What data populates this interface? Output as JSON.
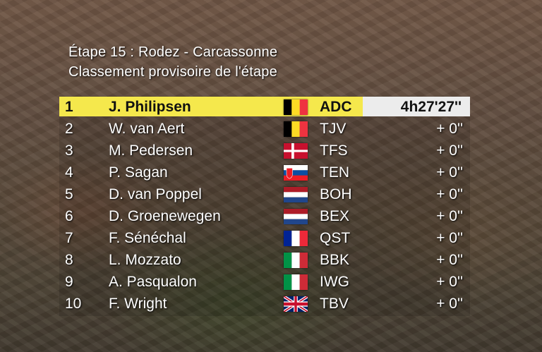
{
  "header": {
    "stage_title": "Étape 15 : Rodez - Carcassonne",
    "subtitle": "Classement provisoire de l'étape"
  },
  "colors": {
    "leader_bg": "#f5e84c",
    "time_bg": "#ececec",
    "text": "#ffffff"
  },
  "rows": [
    {
      "pos": "1",
      "name": "J. Philipsen",
      "flag": "belgium-flag",
      "team": "ADC",
      "time": "4h27'27''"
    },
    {
      "pos": "2",
      "name": "W. van Aert",
      "flag": "belgium-flag",
      "team": "TJV",
      "time": "+ 0''"
    },
    {
      "pos": "3",
      "name": "M. Pedersen",
      "flag": "denmark-flag",
      "team": "TFS",
      "time": "+ 0''"
    },
    {
      "pos": "4",
      "name": "P. Sagan",
      "flag": "slovakia-flag",
      "team": "TEN",
      "time": "+ 0''"
    },
    {
      "pos": "5",
      "name": "D. van Poppel",
      "flag": "netherlands-flag",
      "team": "BOH",
      "time": "+ 0''"
    },
    {
      "pos": "6",
      "name": "D. Groenewegen",
      "flag": "netherlands-flag",
      "team": "BEX",
      "time": "+ 0''"
    },
    {
      "pos": "7",
      "name": "F. Sénéchal",
      "flag": "france-flag",
      "team": "QST",
      "time": "+ 0''"
    },
    {
      "pos": "8",
      "name": "L. Mozzato",
      "flag": "italy-flag",
      "team": "BBK",
      "time": "+ 0''"
    },
    {
      "pos": "9",
      "name": "A. Pasqualon",
      "flag": "italy-flag",
      "team": "IWG",
      "time": "+ 0''"
    },
    {
      "pos": "10",
      "name": "F. Wright",
      "flag": "uk-flag",
      "team": "TBV",
      "time": "+ 0''"
    }
  ]
}
